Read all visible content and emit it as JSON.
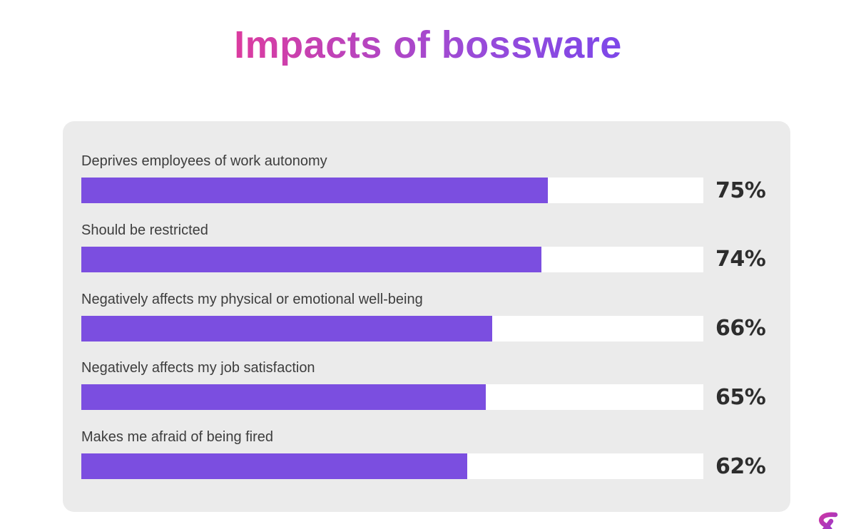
{
  "page": {
    "background": "#FFFFFF"
  },
  "colors": {
    "title_gradient_start": "#F2378C",
    "title_gradient_end": "#6D45F2",
    "bar_fill": "#7B4EE0",
    "bar_track": "#FFFFFF",
    "card_background": "#EBEBEB",
    "label_text": "#3D3D3D",
    "value_text": "#2D2D2D",
    "logo_gradient_start": "#E9348C",
    "logo_gradient_end": "#6C3BEF"
  },
  "chart_data": {
    "type": "bar",
    "orientation": "horizontal",
    "title": "Impacts of bossware",
    "categories": [
      "Deprives employees of work autonomy",
      "Should be restricted",
      "Negatively affects my physical or emotional well-being",
      "Negatively affects my job satisfaction",
      "Makes me afraid of being fired"
    ],
    "values": [
      75,
      74,
      66,
      65,
      62
    ],
    "value_suffix": "%",
    "xlabel": "",
    "ylabel": "",
    "xlim": [
      0,
      100
    ],
    "grid": false,
    "legend": false,
    "value_label_position": "right-of-bar"
  }
}
